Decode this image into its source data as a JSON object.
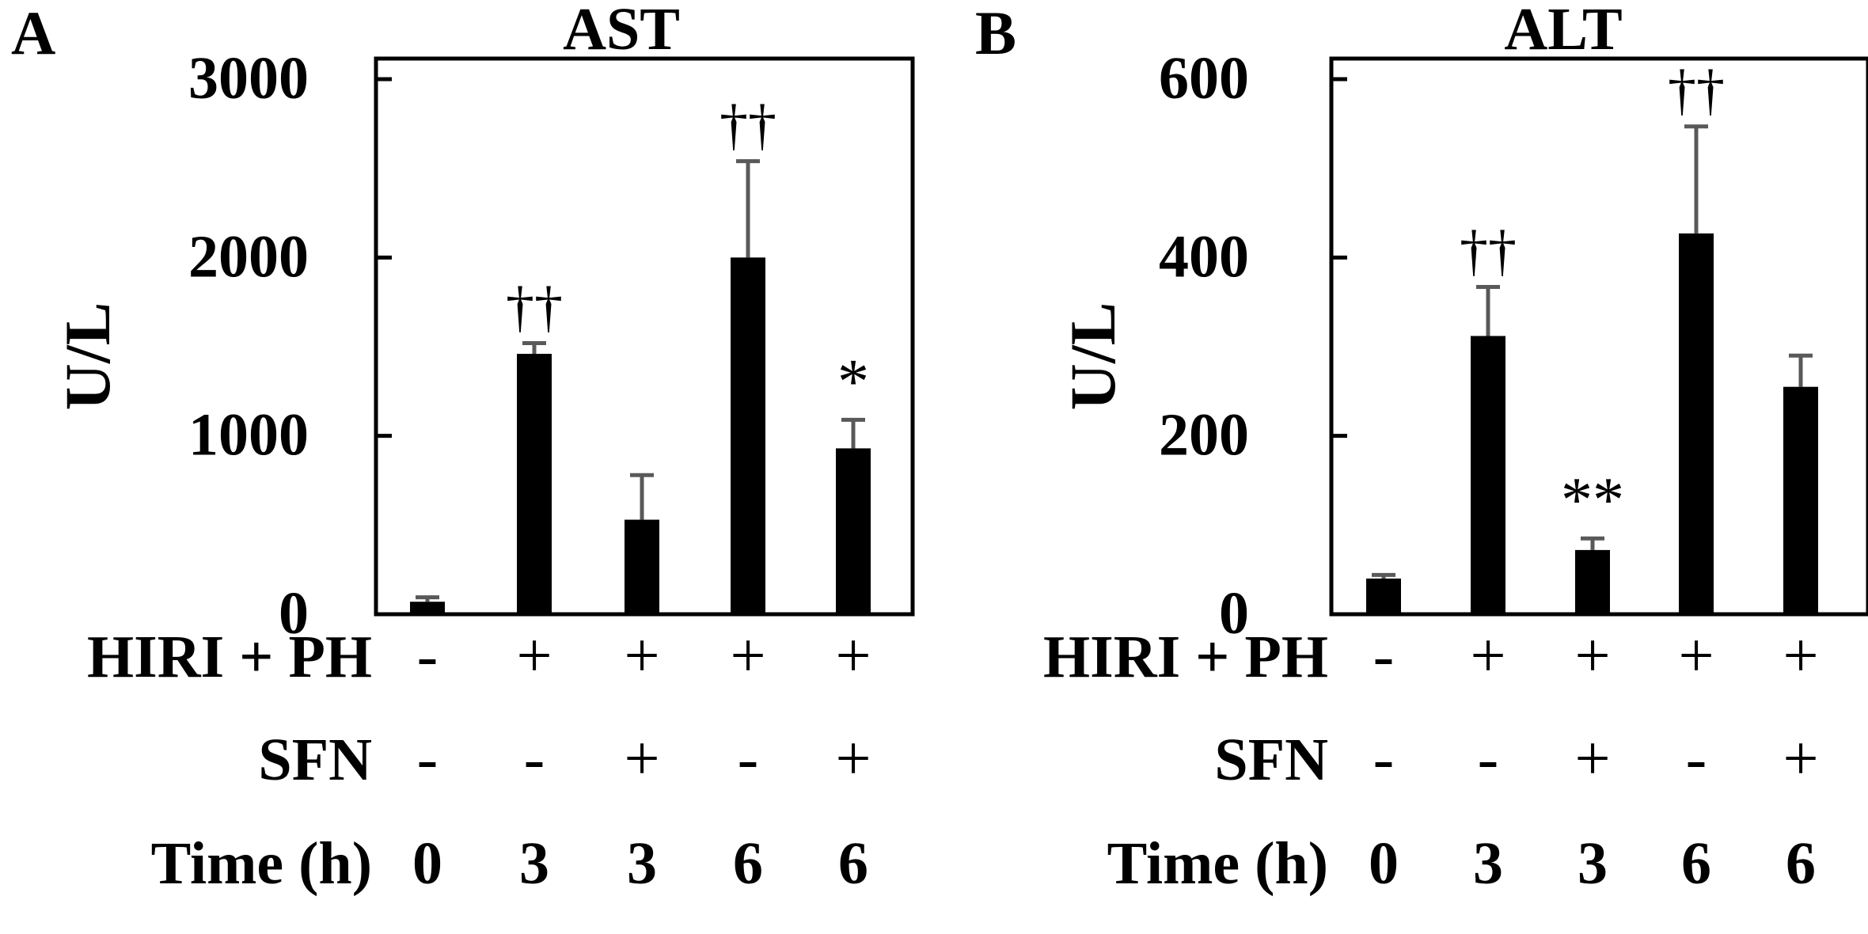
{
  "row_labels": {
    "hiri": "HIRI + PH",
    "sfn": "SFN",
    "time": "Time (h)"
  },
  "groups": {
    "hiri": [
      "-",
      "+",
      "+",
      "+",
      "+"
    ],
    "sfn": [
      "-",
      "-",
      "+",
      "-",
      "+"
    ],
    "time": [
      "0",
      "3",
      "3",
      "6",
      "6"
    ]
  },
  "colors": {
    "bar": "#000000",
    "error_bar": "#595959",
    "axis": "#000000"
  },
  "chart_data": [
    {
      "type": "bar",
      "panel": "A",
      "title": "AST",
      "ylabel": "U/L",
      "ylim": [
        0,
        3000
      ],
      "yticks": [
        0,
        1000,
        2000,
        3000
      ],
      "tick_labels": [
        "0",
        "1000",
        "2000",
        "3000"
      ],
      "categories": [
        "0 h",
        "3 h",
        "3 h + SFN",
        "6 h",
        "6 h + SFN"
      ],
      "values": [
        70,
        1460,
        530,
        2000,
        930
      ],
      "errors": [
        25,
        60,
        250,
        540,
        160
      ],
      "annotations": [
        "",
        "††",
        "",
        "††",
        "*"
      ]
    },
    {
      "type": "bar",
      "panel": "B",
      "title": "ALT",
      "ylabel": "U/L",
      "ylim": [
        0,
        610
      ],
      "yticks": [
        0,
        200,
        400,
        600
      ],
      "tick_labels": [
        "0",
        "200",
        "400",
        "600"
      ],
      "categories": [
        "0 h",
        "3 h",
        "3 h + SFN",
        "6 h",
        "6 h + SFN"
      ],
      "values": [
        40,
        312,
        72,
        427,
        255
      ],
      "errors": [
        4,
        55,
        13,
        120,
        35
      ],
      "annotations": [
        "",
        "††",
        "**",
        "††",
        ""
      ]
    }
  ]
}
